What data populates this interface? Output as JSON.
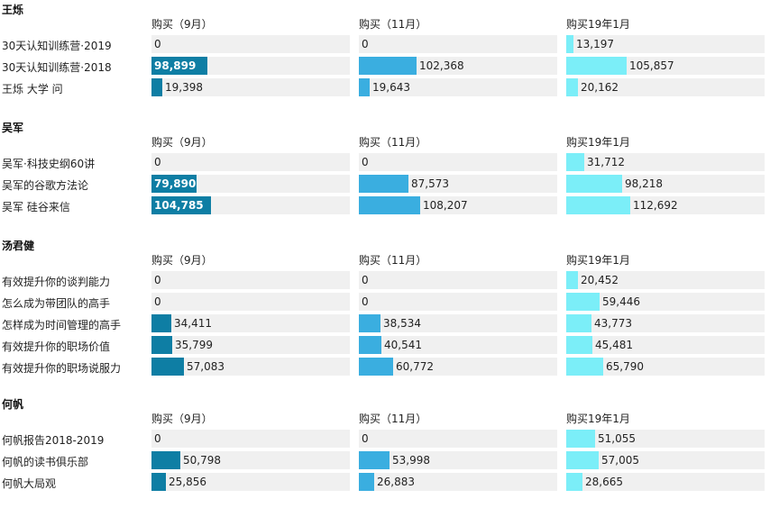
{
  "colors": {
    "sep": "#0e7ea4",
    "nov": "#3aaee0",
    "jan": "#7beef8",
    "track": "#f0f0f0"
  },
  "chart_data": {
    "type": "bar",
    "orientation": "horizontal",
    "columns": [
      "购买（9月）",
      "购买（11月）",
      "购买19年1月"
    ],
    "xlim": [
      0,
      350000
    ],
    "groups": [
      {
        "title": "王烁",
        "rows": [
          {
            "label": "30天认知训练营·2019",
            "values": [
              0,
              0,
              13197
            ],
            "display": [
              "0",
              "0",
              "13,197"
            ]
          },
          {
            "label": "30天认知训练营·2018",
            "values": [
              98899,
              102368,
              105857
            ],
            "display": [
              "98,899",
              "102,368",
              "105,857"
            ]
          },
          {
            "label": "王烁 大学 问",
            "values": [
              19398,
              19643,
              20162
            ],
            "display": [
              "19,398",
              "19,643",
              "20,162"
            ]
          }
        ]
      },
      {
        "title": "吴军",
        "rows": [
          {
            "label": "吴军·科技史纲60讲",
            "values": [
              0,
              0,
              31712
            ],
            "display": [
              "0",
              "0",
              "31,712"
            ]
          },
          {
            "label": "吴军的谷歌方法论",
            "values": [
              79890,
              87573,
              98218
            ],
            "display": [
              "79,890",
              "87,573",
              "98,218"
            ]
          },
          {
            "label": "吴军 硅谷来信",
            "values": [
              104785,
              108207,
              112692
            ],
            "display": [
              "104,785",
              "108,207",
              "112,692"
            ]
          }
        ]
      },
      {
        "title": "汤君健",
        "rows": [
          {
            "label": "有效提升你的谈判能力",
            "values": [
              0,
              0,
              20452
            ],
            "display": [
              "0",
              "0",
              "20,452"
            ]
          },
          {
            "label": "怎么成为带团队的高手",
            "values": [
              0,
              0,
              59446
            ],
            "display": [
              "0",
              "0",
              "59,446"
            ]
          },
          {
            "label": "怎样成为时间管理的高手",
            "values": [
              34411,
              38534,
              43773
            ],
            "display": [
              "34,411",
              "38,534",
              "43,773"
            ]
          },
          {
            "label": "有效提升你的职场价值",
            "values": [
              35799,
              40541,
              45481
            ],
            "display": [
              "35,799",
              "40,541",
              "45,481"
            ]
          },
          {
            "label": "有效提升你的职场说服力",
            "values": [
              57083,
              60772,
              65790
            ],
            "display": [
              "57,083",
              "60,772",
              "65,790"
            ]
          }
        ]
      },
      {
        "title": "何帆",
        "rows": [
          {
            "label": "何帆报告2018-2019",
            "values": [
              0,
              0,
              51055
            ],
            "display": [
              "0",
              "0",
              "51,055"
            ]
          },
          {
            "label": "何帆的读书俱乐部",
            "values": [
              50798,
              53998,
              57005
            ],
            "display": [
              "50,798",
              "53,998",
              "57,005"
            ]
          },
          {
            "label": "何帆大局观",
            "values": [
              25856,
              26883,
              28665
            ],
            "display": [
              "25,856",
              "26,883",
              "28,665"
            ]
          }
        ]
      }
    ]
  }
}
